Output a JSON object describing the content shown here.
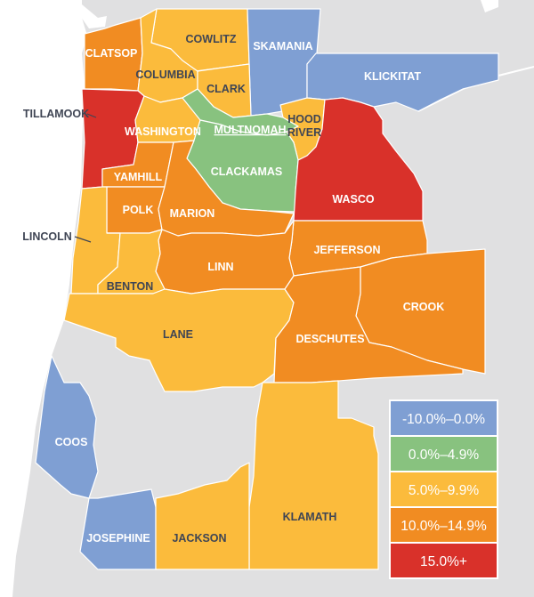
{
  "map": {
    "colors": {
      "background": "#e0e0e1",
      "ocean": "#ffffff",
      "negative": "#7f9fd3",
      "low": "#88c27f",
      "mid": "#fbbb3c",
      "high": "#f18c22",
      "top": "#d9312a"
    },
    "counties": [
      {
        "name": "CLATSOP",
        "bucket": "high"
      },
      {
        "name": "COWLITZ",
        "bucket": "mid"
      },
      {
        "name": "SKAMANIA",
        "bucket": "negative"
      },
      {
        "name": "COLUMBIA",
        "bucket": "mid"
      },
      {
        "name": "CLARK",
        "bucket": "mid"
      },
      {
        "name": "KLICKITAT",
        "bucket": "negative"
      },
      {
        "name": "TILLAMOOK",
        "bucket": "top"
      },
      {
        "name": "WASHINGTON",
        "bucket": "mid"
      },
      {
        "name": "MULTNOMAH",
        "bucket": "low"
      },
      {
        "name": "HOOD RIVER",
        "bucket": "mid"
      },
      {
        "name": "YAMHILL",
        "bucket": "high"
      },
      {
        "name": "CLACKAMAS",
        "bucket": "low"
      },
      {
        "name": "WASCO",
        "bucket": "top"
      },
      {
        "name": "POLK",
        "bucket": "high"
      },
      {
        "name": "MARION",
        "bucket": "high"
      },
      {
        "name": "LINCOLN",
        "bucket": "mid"
      },
      {
        "name": "JEFFERSON",
        "bucket": "high"
      },
      {
        "name": "LINN",
        "bucket": "high"
      },
      {
        "name": "BENTON",
        "bucket": "mid"
      },
      {
        "name": "CROOK",
        "bucket": "high"
      },
      {
        "name": "LANE",
        "bucket": "mid"
      },
      {
        "name": "DESCHUTES",
        "bucket": "high"
      },
      {
        "name": "COOS",
        "bucket": "negative"
      },
      {
        "name": "KLAMATH",
        "bucket": "mid"
      },
      {
        "name": "JOSEPHINE",
        "bucket": "negative"
      },
      {
        "name": "JACKSON",
        "bucket": "mid"
      }
    ],
    "legend": [
      {
        "label": "-10.0%–0.0%",
        "bucket": "negative"
      },
      {
        "label": "0.0%–4.9%",
        "bucket": "low"
      },
      {
        "label": "5.0%–9.9%",
        "bucket": "mid"
      },
      {
        "label": "10.0%–14.9%",
        "bucket": "high"
      },
      {
        "label": "15.0%+",
        "bucket": "top"
      }
    ]
  }
}
